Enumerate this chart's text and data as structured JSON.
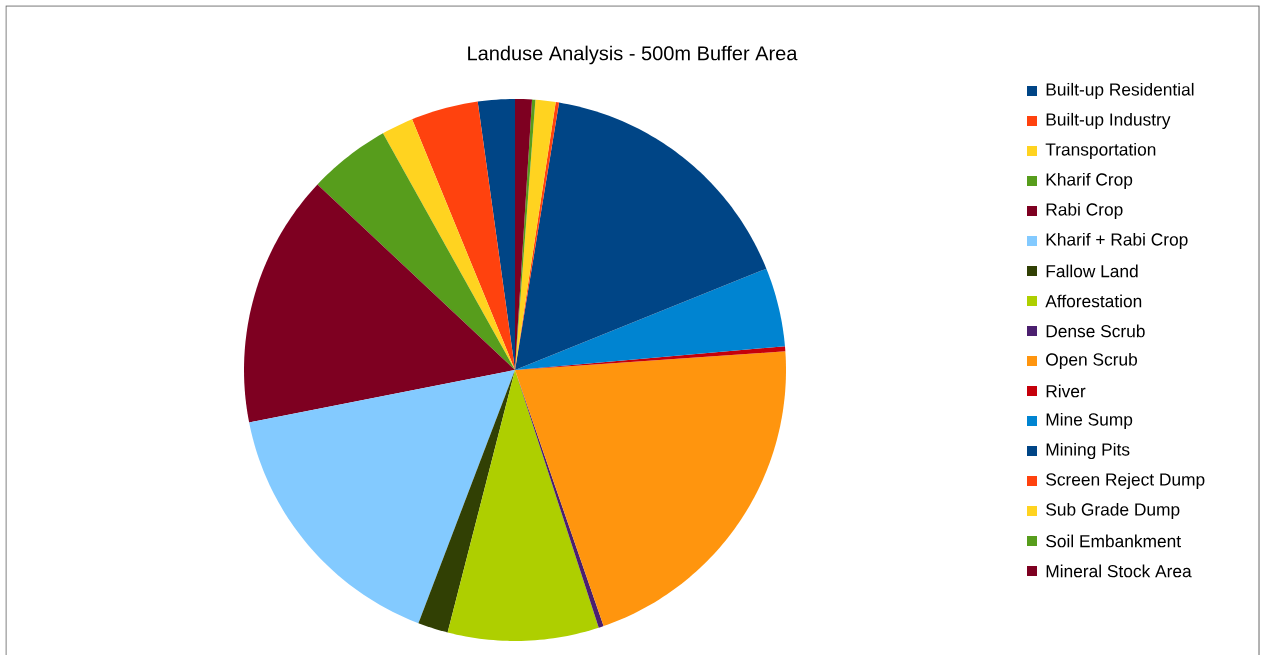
{
  "chart_data": {
    "type": "pie",
    "title": "Landuse Analysis - 500m Buffer Area",
    "legend": "right",
    "categories": [
      "Built-up Residential",
      "Built-up Industry",
      "Transportation",
      "Kharif Crop",
      "Rabi Crop",
      "Kharif + Rabi Crop",
      "Fallow Land",
      "Afforestation",
      "Dense Scrub",
      "Open Scrub",
      "River",
      "Mine Sump",
      "Mining Pits",
      "Screen Reject Dump",
      "Sub Grade Dump",
      "Soil Embankment",
      "Mineral Stock Area"
    ],
    "values": [
      2.2,
      4.0,
      1.9,
      4.9,
      15.1,
      16.1,
      1.8,
      9.0,
      0.3,
      20.8,
      0.3,
      4.7,
      16.3,
      0.2,
      1.2,
      0.2,
      1.0
    ],
    "colors": [
      "#004586",
      "#ff420e",
      "#ffd320",
      "#579d1c",
      "#7e0021",
      "#83caff",
      "#314004",
      "#aecf00",
      "#4b1f6f",
      "#ff950e",
      "#c5000b",
      "#0084d1",
      "#004586",
      "#ff420e",
      "#ffd320",
      "#579d1c",
      "#7e0021"
    ]
  }
}
